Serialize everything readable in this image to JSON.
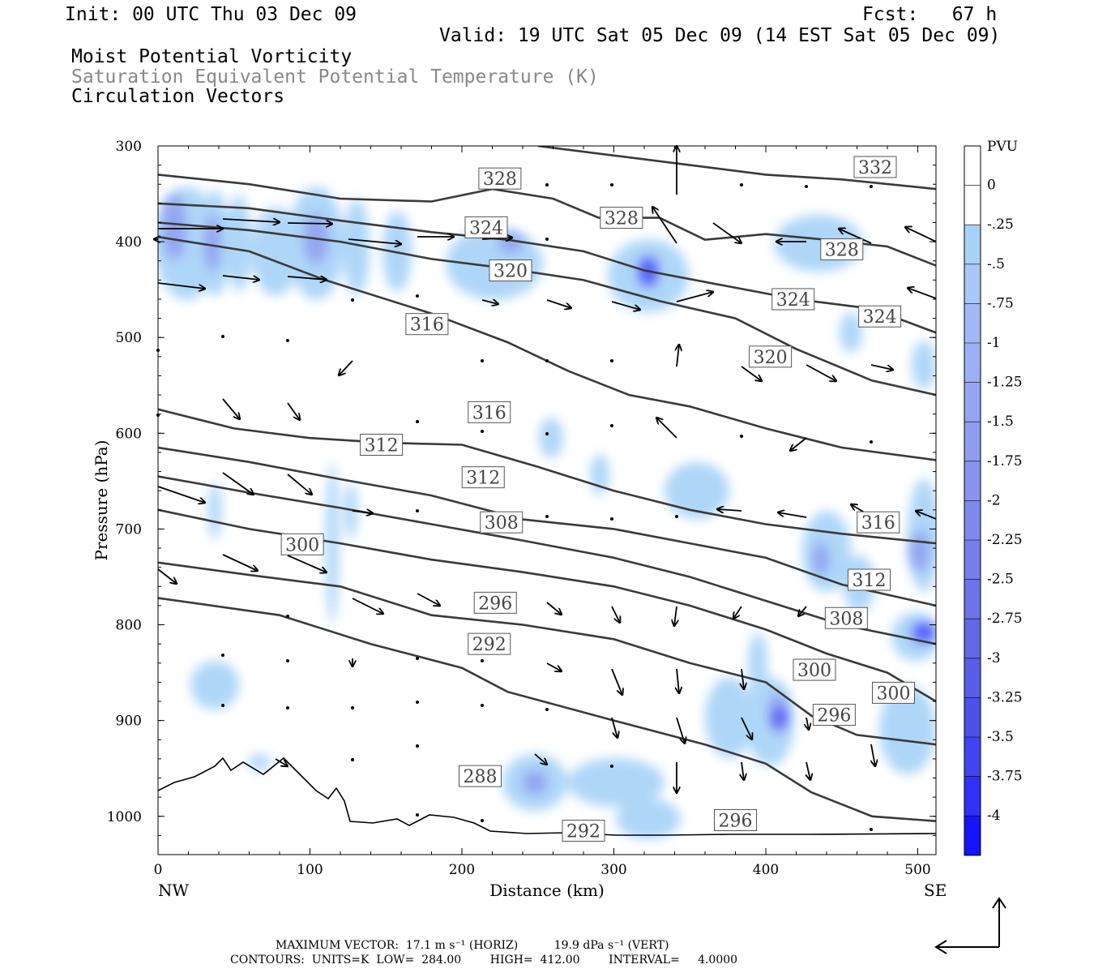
{
  "header": {
    "init": "Init: 00 UTC Thu 03 Dec 09",
    "fcst": "Fcst:   67 h",
    "valid": "Valid: 19 UTC Sat 05 Dec 09 (14 EST Sat 05 Dec 09)",
    "title1": "Moist Potential Vorticity",
    "title2": "Saturation Equivalent Potential Temperature (K)",
    "title3": "Circulation Vectors"
  },
  "footer": {
    "max_vector": "MAXIMUM VECTOR:  17.1 m s⁻¹ (HORIZ)          19.9 dPa s⁻¹ (VERT)",
    "contours": "CONTOURS:  UNITS=K  LOW=  284.00        HIGH=  412.00        INTERVAL=     4.0000"
  },
  "colors": {
    "contour": "#3a3a3a",
    "pv_fill": "#a6d2f8",
    "pv_mid": "#8fa2f0",
    "pv_strong": "#3c3cff"
  },
  "chart_data": {
    "type": "contour",
    "xlabel": "Distance (km)",
    "ylabel": "Pressure (hPa)",
    "xlim": [
      0,
      512
    ],
    "ylim": [
      1040,
      300
    ],
    "x_ticks": [
      0,
      100,
      200,
      300,
      400,
      500
    ],
    "y_ticks": [
      300,
      400,
      500,
      600,
      700,
      800,
      900,
      1000
    ],
    "x_end_labels": {
      "left": "NW",
      "right": "SE"
    },
    "y_scale": "linear-reversed",
    "colorbar": {
      "title": "PVU",
      "levels": [
        "0",
        "-.25",
        "-.5",
        "-.75",
        "-1",
        "-1.25",
        "-1.5",
        "-1.75",
        "-2",
        "-2.25",
        "-2.5",
        "-2.75",
        "-3",
        "-3.25",
        "-3.5",
        "-3.75",
        "-4"
      ],
      "colors": [
        "#ffffff",
        "#ffffff",
        "#a6d2f8",
        "#a9c8f8",
        "#a3b9f6",
        "#9caff4",
        "#96a5f2",
        "#8f9cf0",
        "#8993ee",
        "#7f88ec",
        "#777ee9",
        "#6e73e7",
        "#6468e5",
        "#5a5de6",
        "#4e50ea",
        "#4244f1",
        "#2f30f8",
        "#1414ff"
      ]
    },
    "contour_lines": [
      {
        "level": 332,
        "label": "332",
        "points": [
          [
            250,
            300
          ],
          [
            300,
            310
          ],
          [
            350,
            320
          ],
          [
            400,
            330
          ],
          [
            450,
            335
          ],
          [
            512,
            345
          ]
        ]
      },
      {
        "level": 328,
        "label": "328",
        "points": [
          [
            0,
            330
          ],
          [
            60,
            340
          ],
          [
            120,
            355
          ],
          [
            180,
            358
          ],
          [
            220,
            345
          ],
          [
            260,
            355
          ],
          [
            290,
            375
          ],
          [
            330,
            375
          ],
          [
            360,
            398
          ],
          [
            400,
            392
          ],
          [
            440,
            398
          ],
          [
            480,
            405
          ],
          [
            512,
            425
          ]
        ]
      },
      {
        "level": 324,
        "label": "324",
        "points": [
          [
            0,
            360
          ],
          [
            60,
            365
          ],
          [
            120,
            378
          ],
          [
            180,
            390
          ],
          [
            230,
            398
          ],
          [
            280,
            410
          ],
          [
            320,
            430
          ],
          [
            370,
            445
          ],
          [
            420,
            460
          ],
          [
            470,
            470
          ],
          [
            512,
            495
          ]
        ]
      },
      {
        "level": 320,
        "label": "320",
        "points": [
          [
            0,
            380
          ],
          [
            60,
            388
          ],
          [
            120,
            400
          ],
          [
            180,
            418
          ],
          [
            230,
            428
          ],
          [
            280,
            440
          ],
          [
            330,
            462
          ],
          [
            380,
            480
          ],
          [
            420,
            512
          ],
          [
            470,
            545
          ],
          [
            512,
            560
          ]
        ]
      },
      {
        "level": 316,
        "label": "316",
        "points": [
          [
            0,
            395
          ],
          [
            60,
            410
          ],
          [
            110,
            440
          ],
          [
            180,
            475
          ],
          [
            230,
            505
          ],
          [
            270,
            535
          ],
          [
            310,
            560
          ],
          [
            350,
            572
          ],
          [
            400,
            595
          ],
          [
            450,
            615
          ],
          [
            512,
            628
          ]
        ]
      },
      {
        "level": 312,
        "label": "312",
        "points": [
          [
            0,
            575
          ],
          [
            50,
            595
          ],
          [
            100,
            605
          ],
          [
            150,
            610
          ],
          [
            200,
            612
          ],
          [
            250,
            635
          ],
          [
            300,
            660
          ],
          [
            350,
            680
          ],
          [
            400,
            695
          ],
          [
            450,
            705
          ],
          [
            512,
            715
          ]
        ]
      },
      {
        "level": 308,
        "label": "308",
        "points": [
          [
            0,
            615
          ],
          [
            60,
            630
          ],
          [
            120,
            648
          ],
          [
            180,
            665
          ],
          [
            240,
            690
          ],
          [
            300,
            700
          ],
          [
            350,
            715
          ],
          [
            400,
            730
          ],
          [
            450,
            758
          ],
          [
            512,
            780
          ]
        ]
      },
      {
        "level": 300,
        "label": "300",
        "points": [
          [
            0,
            645
          ],
          [
            60,
            662
          ],
          [
            120,
            678
          ],
          [
            180,
            695
          ],
          [
            240,
            712
          ],
          [
            300,
            730
          ],
          [
            350,
            750
          ],
          [
            400,
            775
          ],
          [
            450,
            800
          ],
          [
            512,
            820
          ]
        ]
      },
      {
        "level": 296,
        "label": "296",
        "points": [
          [
            0,
            680
          ],
          [
            60,
            700
          ],
          [
            120,
            715
          ],
          [
            180,
            732
          ],
          [
            240,
            745
          ],
          [
            300,
            760
          ],
          [
            350,
            780
          ],
          [
            400,
            805
          ],
          [
            440,
            830
          ],
          [
            480,
            850
          ],
          [
            512,
            880
          ]
        ]
      },
      {
        "level": 292,
        "label": "292",
        "points": [
          [
            0,
            735
          ],
          [
            60,
            748
          ],
          [
            120,
            760
          ],
          [
            180,
            790
          ],
          [
            240,
            800
          ],
          [
            300,
            815
          ],
          [
            350,
            840
          ],
          [
            400,
            860
          ],
          [
            430,
            895
          ],
          [
            460,
            915
          ],
          [
            512,
            925
          ]
        ]
      },
      {
        "level": 288,
        "label": "288",
        "points": [
          [
            0,
            772
          ],
          [
            80,
            790
          ],
          [
            140,
            820
          ],
          [
            200,
            845
          ],
          [
            230,
            870
          ],
          [
            300,
            900
          ],
          [
            360,
            925
          ],
          [
            400,
            945
          ],
          [
            430,
            975
          ],
          [
            470,
            1000
          ],
          [
            512,
            1005
          ]
        ]
      }
    ],
    "contour_labels": [
      {
        "text": "328",
        "x": 225,
        "y": 334
      },
      {
        "text": "332",
        "x": 472,
        "y": 322
      },
      {
        "text": "328",
        "x": 305,
        "y": 375
      },
      {
        "text": "328",
        "x": 450,
        "y": 408
      },
      {
        "text": "324",
        "x": 216,
        "y": 385
      },
      {
        "text": "320",
        "x": 232,
        "y": 430
      },
      {
        "text": "324",
        "x": 418,
        "y": 460
      },
      {
        "text": "324",
        "x": 475,
        "y": 478
      },
      {
        "text": "316",
        "x": 177,
        "y": 486
      },
      {
        "text": "320",
        "x": 403,
        "y": 520
      },
      {
        "text": "316",
        "x": 218,
        "y": 578
      },
      {
        "text": "312",
        "x": 147,
        "y": 612
      },
      {
        "text": "312",
        "x": 214,
        "y": 646
      },
      {
        "text": "308",
        "x": 226,
        "y": 693
      },
      {
        "text": "316",
        "x": 474,
        "y": 693
      },
      {
        "text": "300",
        "x": 95,
        "y": 716
      },
      {
        "text": "312",
        "x": 468,
        "y": 753
      },
      {
        "text": "296",
        "x": 222,
        "y": 777
      },
      {
        "text": "308",
        "x": 453,
        "y": 793
      },
      {
        "text": "292",
        "x": 218,
        "y": 820
      },
      {
        "text": "300",
        "x": 432,
        "y": 847
      },
      {
        "text": "300",
        "x": 484,
        "y": 871
      },
      {
        "text": "296",
        "x": 445,
        "y": 894
      },
      {
        "text": "288",
        "x": 212,
        "y": 958
      },
      {
        "text": "296",
        "x": 380,
        "y": 1004
      },
      {
        "text": "292",
        "x": 280,
        "y": 1015
      }
    ]
  }
}
